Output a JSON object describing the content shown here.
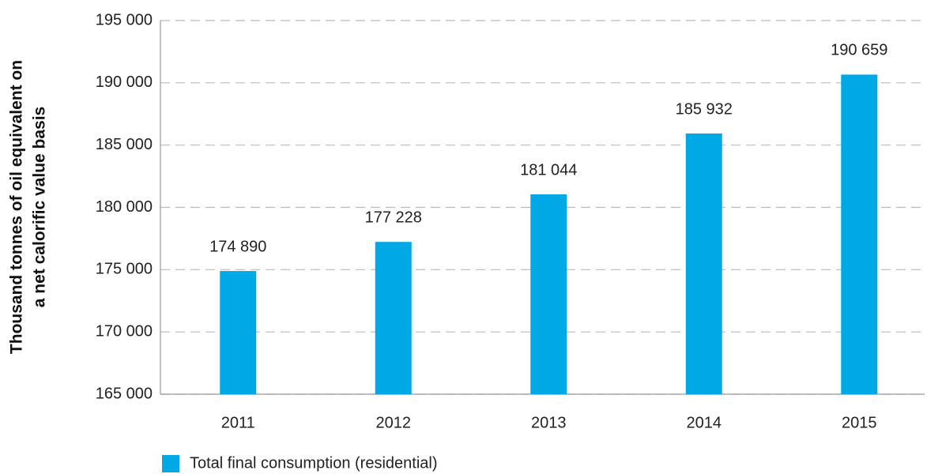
{
  "chart_data": {
    "type": "bar",
    "y_label": [
      "Thousand tonnes of oil equivalent on",
      "a net calorific value basis"
    ],
    "categories": [
      "2011",
      "2012",
      "2013",
      "2014",
      "2015"
    ],
    "series": [
      {
        "name": "Total final consumption (residential)",
        "color": "#00a9e6",
        "values": [
          174890,
          177228,
          181044,
          185932,
          190659
        ],
        "value_labels": [
          "174 890",
          "177 228",
          "181 044",
          "185 932",
          "190 659"
        ]
      }
    ],
    "ylim": [
      165000,
      195000
    ],
    "yticks": [
      {
        "value": 165000,
        "label": "165 000"
      },
      {
        "value": 170000,
        "label": "170 000"
      },
      {
        "value": 175000,
        "label": "175 000"
      },
      {
        "value": 180000,
        "label": "180 000"
      },
      {
        "value": 185000,
        "label": "185 000"
      },
      {
        "value": 190000,
        "label": "190 000"
      },
      {
        "value": 195000,
        "label": "195 000"
      }
    ],
    "grid": true,
    "legend": "bottom"
  }
}
